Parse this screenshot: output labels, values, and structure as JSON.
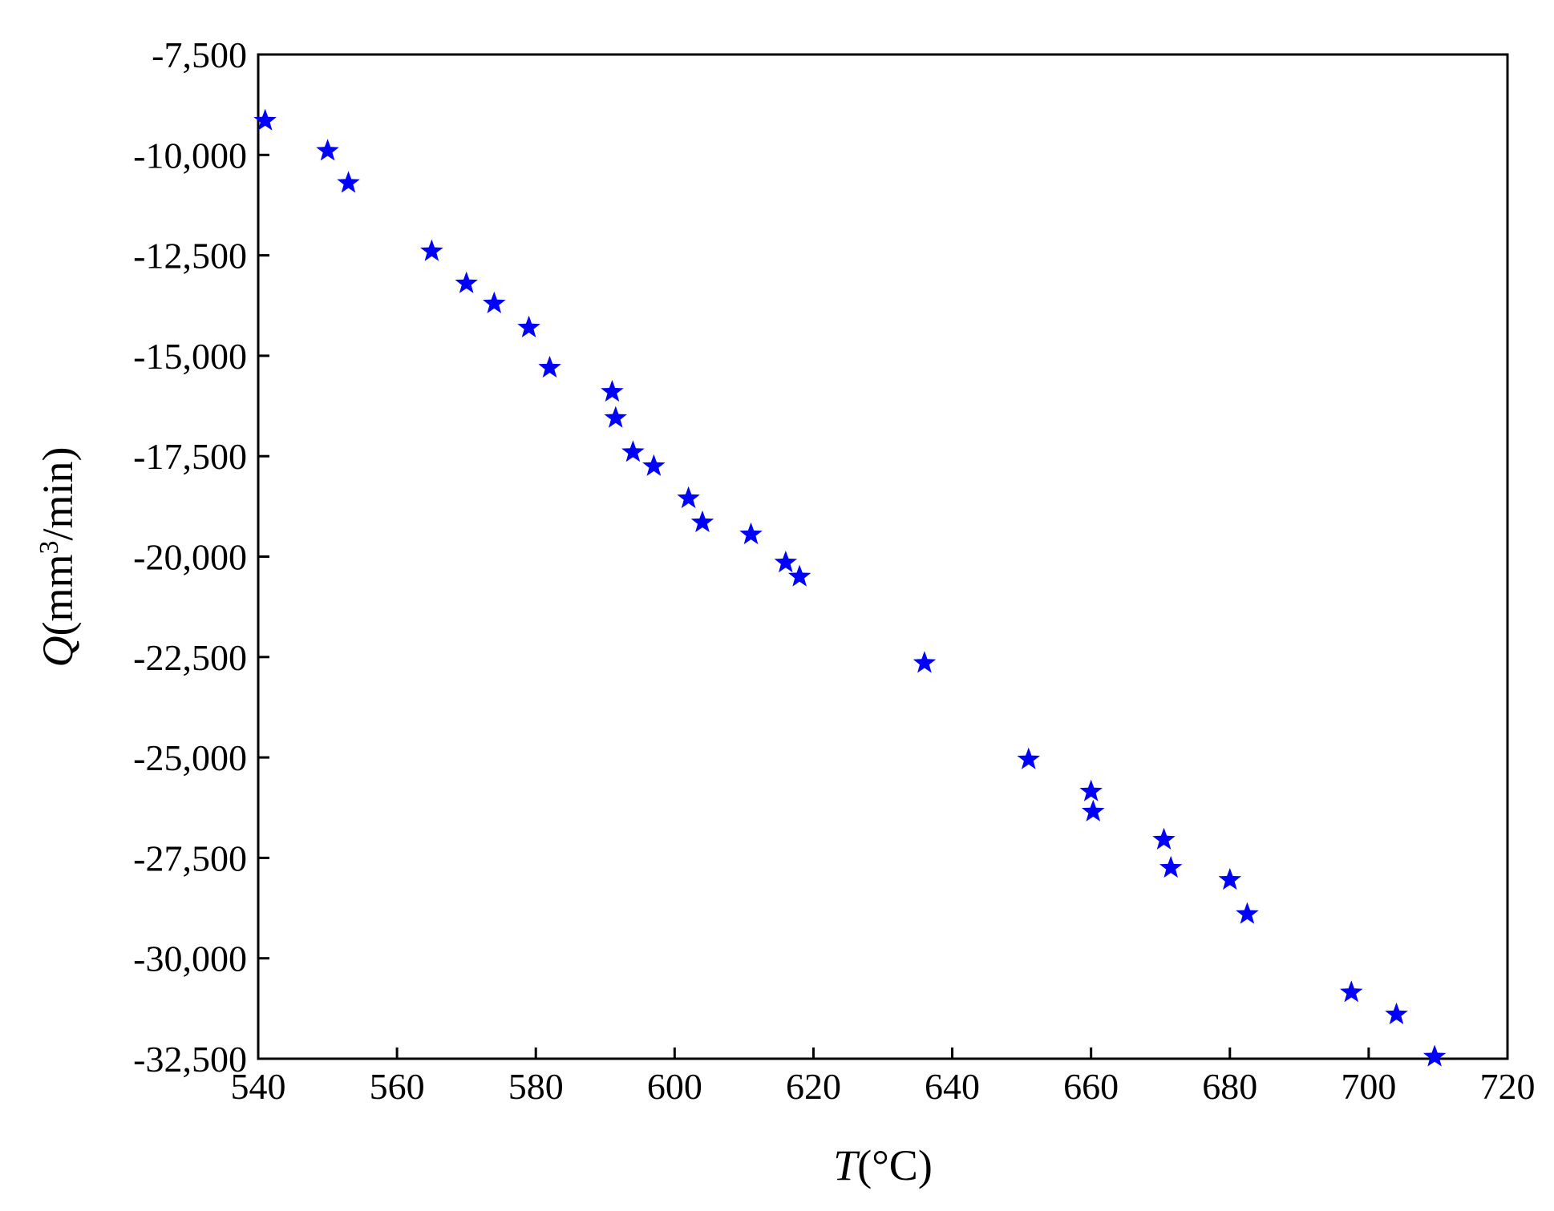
{
  "chart_data": {
    "type": "scatter",
    "xlabel": {
      "symbol": "T",
      "unit": "(°C)"
    },
    "ylabel": {
      "symbol": "Q",
      "unit_prefix": "(mm",
      "unit_sup": "3",
      "unit_suffix": "/min)"
    },
    "xlim": [
      540,
      720
    ],
    "ylim": [
      -32500,
      -7500
    ],
    "xticks": [
      540,
      560,
      580,
      600,
      620,
      640,
      660,
      680,
      700,
      720
    ],
    "xtick_labels": [
      "540",
      "560",
      "580",
      "600",
      "620",
      "640",
      "660",
      "680",
      "700",
      "720"
    ],
    "yticks": [
      -7500,
      -10000,
      -12500,
      -15000,
      -17500,
      -20000,
      -22500,
      -25000,
      -27500,
      -30000,
      -32500
    ],
    "ytick_labels": [
      "-7,500",
      "-10,000",
      "-12,500",
      "-15,000",
      "-17,500",
      "-20,000",
      "-22,500",
      "-25,000",
      "-27,500",
      "-30,000",
      "-32,500"
    ],
    "grid": false,
    "marker": "star",
    "marker_color": "#0000ff",
    "points": [
      {
        "x": 541,
        "y": -9150
      },
      {
        "x": 550,
        "y": -9900
      },
      {
        "x": 553,
        "y": -10700
      },
      {
        "x": 565,
        "y": -12400
      },
      {
        "x": 570,
        "y": -13200
      },
      {
        "x": 574,
        "y": -13700
      },
      {
        "x": 579,
        "y": -14300
      },
      {
        "x": 582,
        "y": -15300
      },
      {
        "x": 591,
        "y": -15900
      },
      {
        "x": 591.5,
        "y": -16550
      },
      {
        "x": 594,
        "y": -17400
      },
      {
        "x": 597,
        "y": -17750
      },
      {
        "x": 602,
        "y": -18550
      },
      {
        "x": 604,
        "y": -19150
      },
      {
        "x": 611,
        "y": -19450
      },
      {
        "x": 616,
        "y": -20150
      },
      {
        "x": 618,
        "y": -20500
      },
      {
        "x": 636,
        "y": -22650
      },
      {
        "x": 651,
        "y": -25050
      },
      {
        "x": 660,
        "y": -25850
      },
      {
        "x": 660.3,
        "y": -26350
      },
      {
        "x": 670.5,
        "y": -27050
      },
      {
        "x": 671.5,
        "y": -27750
      },
      {
        "x": 680,
        "y": -28050
      },
      {
        "x": 682.5,
        "y": -28900
      },
      {
        "x": 697.5,
        "y": -30850
      },
      {
        "x": 704,
        "y": -31400
      },
      {
        "x": 709.5,
        "y": -32450
      }
    ]
  }
}
